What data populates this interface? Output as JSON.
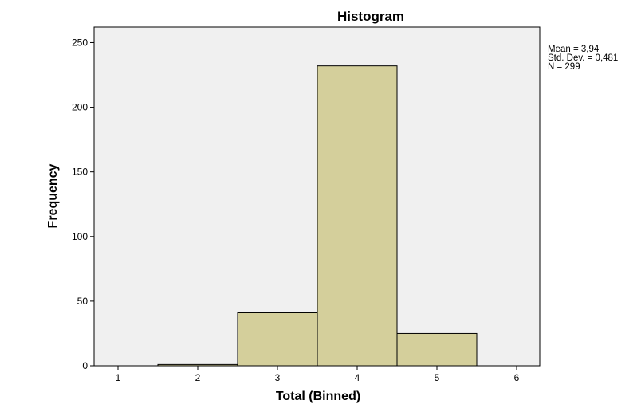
{
  "chart_data": {
    "type": "bar",
    "title": "Histogram",
    "xlabel": "Total (Binned)",
    "ylabel": "Frequency",
    "categories": [
      "1",
      "2",
      "3",
      "4",
      "5",
      "6"
    ],
    "values": [
      0,
      1,
      41,
      232,
      25,
      0
    ],
    "xlim": [
      0.7,
      6.29
    ],
    "ylim": [
      0,
      262
    ],
    "yticks": [
      "0",
      "50",
      "100",
      "150",
      "200",
      "250"
    ],
    "ytick_values": [
      0,
      50,
      100,
      150,
      200,
      250
    ],
    "grid": false,
    "stats": [
      "Mean = 3,94",
      "Std. Dev. = 0,481",
      "N = 299"
    ],
    "colors": {
      "bar": "#d4cf9b",
      "plot_bg": "#f0f0f0",
      "outline": "#000000"
    }
  }
}
